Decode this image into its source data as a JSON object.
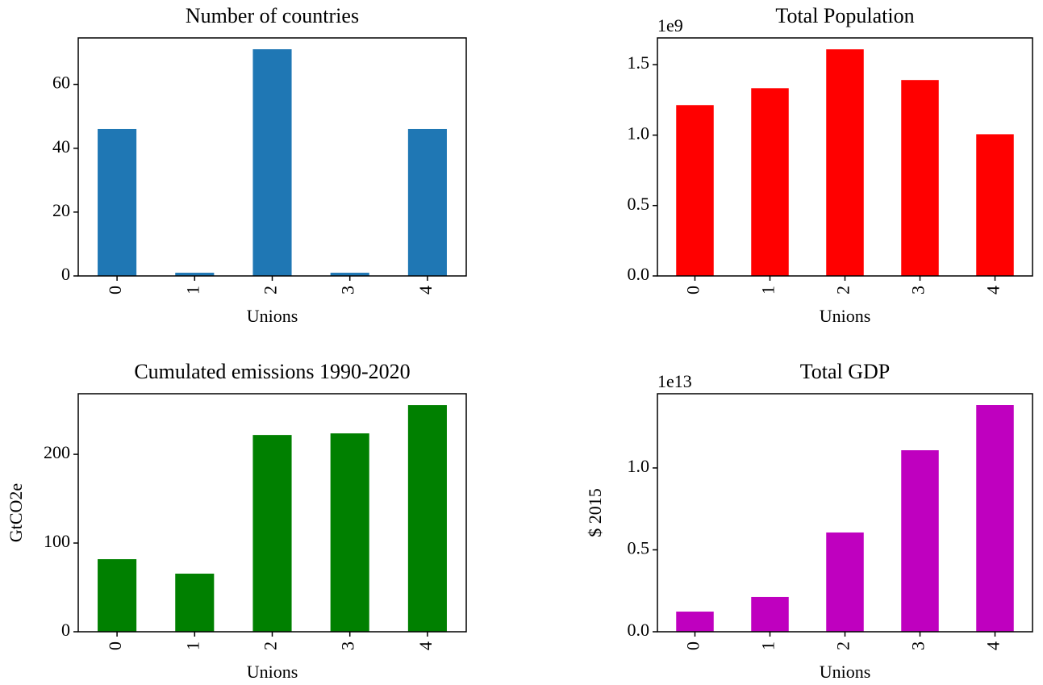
{
  "chart_data": [
    {
      "type": "bar",
      "title": "Number of countries",
      "xlabel": "Unions",
      "categories": [
        "0",
        "1",
        "2",
        "3",
        "4"
      ],
      "values": [
        46,
        1,
        71,
        1,
        46
      ],
      "color": "#1f77b4",
      "ylim": [
        0,
        74.55
      ],
      "yticks": [
        0,
        20,
        40,
        60
      ]
    },
    {
      "type": "bar",
      "title": "Total Population",
      "xlabel": "Unions",
      "offset_text": "1e9",
      "categories": [
        "0",
        "1",
        "2",
        "3",
        "4"
      ],
      "values": [
        1213000000,
        1333000000,
        1609000000,
        1391000000,
        1006000000
      ],
      "color": "#ff0000",
      "ylim": [
        0,
        1690000000
      ],
      "yticks": [
        {
          "value": 0,
          "label": "0.0"
        },
        {
          "value": 500000000,
          "label": "0.5"
        },
        {
          "value": 1000000000,
          "label": "1.0"
        },
        {
          "value": 1500000000,
          "label": "1.5"
        }
      ]
    },
    {
      "type": "bar",
      "title": "Cumulated emissions 1990-2020",
      "xlabel": "Unions",
      "ylabel": "GtCO2e",
      "categories": [
        "0",
        "1",
        "2",
        "3",
        "4"
      ],
      "values": [
        81.8,
        65.5,
        221.8,
        223.6,
        255.5
      ],
      "color": "#008000",
      "ylim": [
        0,
        268.3
      ],
      "yticks": [
        0,
        100,
        200
      ]
    },
    {
      "type": "bar",
      "title": "Total GDP",
      "xlabel": "Unions",
      "ylabel": "$ 2015",
      "offset_text": "1e13",
      "categories": [
        "0",
        "1",
        "2",
        "3",
        "4"
      ],
      "values": [
        1230000000000,
        2120000000000,
        6060000000000,
        11080000000000,
        13840000000000
      ],
      "color": "#bf00bf",
      "ylim": [
        0,
        14530000000000
      ],
      "yticks": [
        {
          "value": 0,
          "label": "0.0"
        },
        {
          "value": 5000000000000,
          "label": "0.5"
        },
        {
          "value": 10000000000000,
          "label": "1.0"
        }
      ]
    }
  ]
}
